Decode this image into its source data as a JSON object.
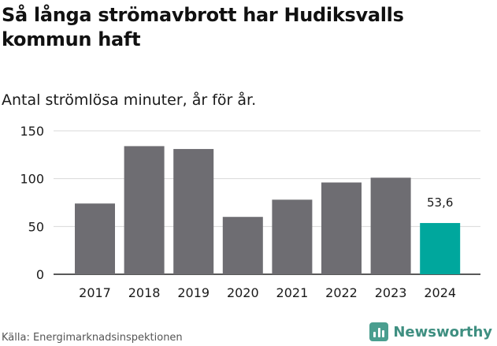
{
  "chart_data": {
    "type": "bar",
    "title": "Så långa strömavbrott har Hudiksvalls kommun haft",
    "subtitle": "Antal strömlösa minuter, år för år.",
    "categories": [
      "2017",
      "2018",
      "2019",
      "2020",
      "2021",
      "2022",
      "2023",
      "2024"
    ],
    "values": [
      74,
      134,
      131,
      60,
      78,
      96,
      101,
      53.6
    ],
    "data_labels": {
      "2024": "53,6"
    },
    "ylim": [
      0,
      150
    ],
    "yticks": [
      0,
      50,
      100,
      150
    ],
    "xlabel": "",
    "ylabel": "",
    "grid": true,
    "colors": {
      "default": "#6e6d72",
      "highlight": "#00a79d",
      "grid": "#d9d9d9",
      "axis": "#222222"
    },
    "highlight_category": "2024"
  },
  "footer": {
    "source": "Källa: Energimarknadsinspektionen",
    "brand": "Newsworthy"
  }
}
